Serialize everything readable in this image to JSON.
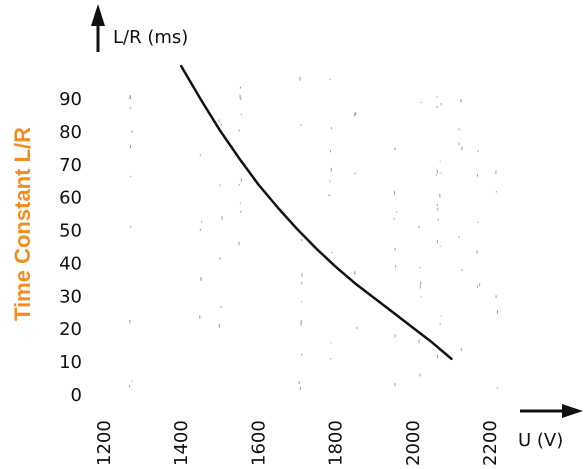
{
  "chart_data": {
    "type": "line",
    "title": "",
    "ylabel_side": "Time Constant L/R",
    "ylabel_top": "L/R (ms)",
    "xlabel": "U (V)",
    "x_ticks": [
      "1200",
      "1400",
      "1600",
      "1800",
      "2000",
      "2200"
    ],
    "y_ticks": [
      "0",
      "10",
      "20",
      "30",
      "40",
      "50",
      "60",
      "70",
      "80",
      "90"
    ],
    "xlim": [
      1200,
      2200
    ],
    "ylim": [
      0,
      90
    ],
    "grid": false,
    "series": [
      {
        "x": [
          1400,
          1450,
          1500,
          1550,
          1600,
          1650,
          1700,
          1750,
          1800,
          1850,
          1900,
          1950,
          2000,
          2050,
          2100
        ],
        "y": [
          100,
          90,
          80.5,
          72,
          64,
          57,
          50.5,
          44.5,
          39,
          34,
          29.5,
          25,
          20.5,
          16,
          11
        ]
      }
    ],
    "colors": {
      "line": "#111111",
      "side_label": "#f28c1e",
      "axis": "#111111"
    }
  }
}
